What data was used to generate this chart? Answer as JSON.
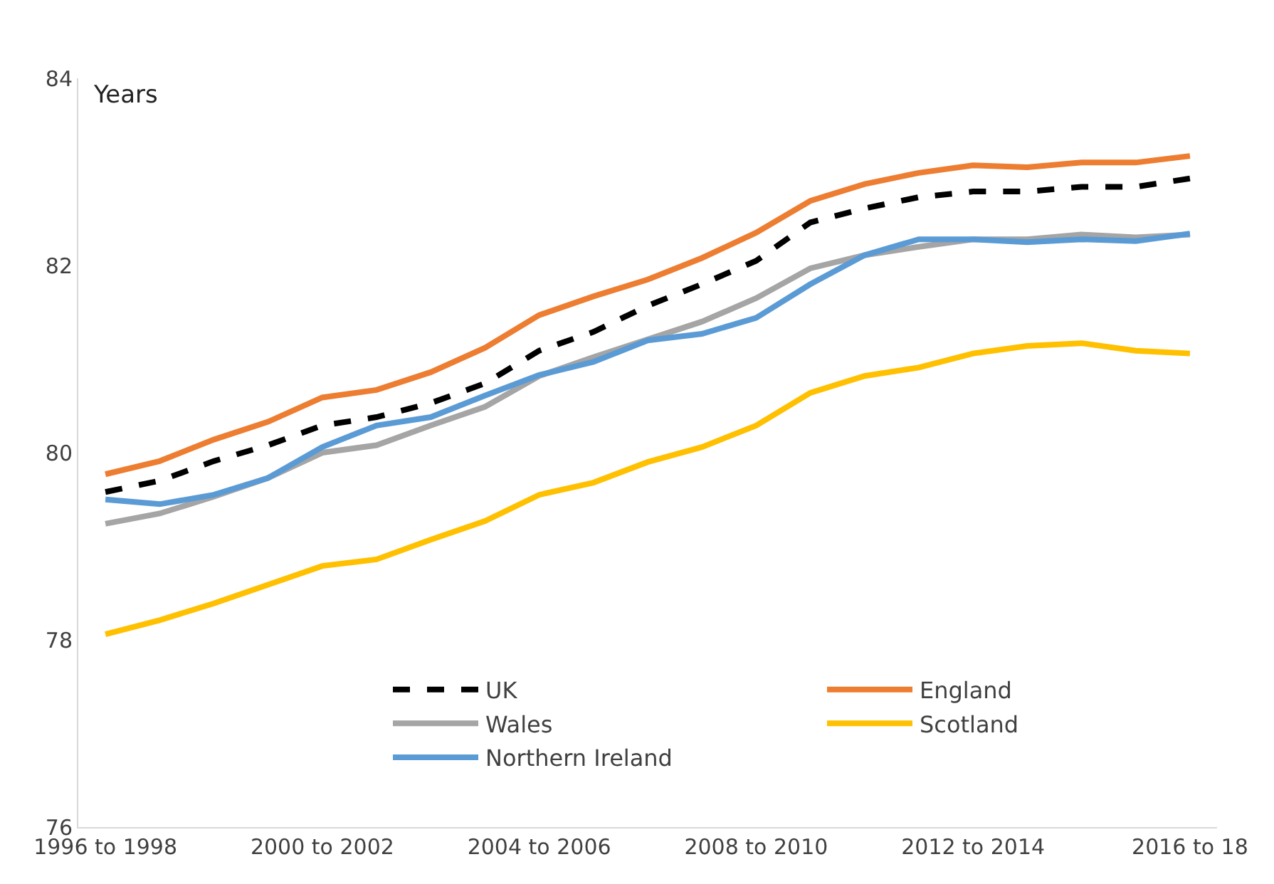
{
  "chart_data": {
    "type": "line",
    "ylabel": "Years",
    "categories": [
      "1996 to 1998",
      null,
      null,
      null,
      "2000 to 2002",
      null,
      null,
      null,
      "2004 to 2006",
      null,
      null,
      null,
      "2008 to 2010",
      null,
      null,
      null,
      "2012 to 2014",
      null,
      null,
      null,
      "2016 to 18"
    ],
    "ylim": [
      76,
      84
    ],
    "yticks": [
      76,
      78,
      80,
      82,
      84
    ],
    "legend": "bottom",
    "series": [
      {
        "name": "UK",
        "color": "#000000",
        "line_style": "dashed",
        "values": [
          79.58,
          79.7,
          79.91,
          80.08,
          80.29,
          80.38,
          80.53,
          80.74,
          81.09,
          81.29,
          81.57,
          81.8,
          82.05,
          82.46,
          82.61,
          82.73,
          82.79,
          82.79,
          82.84,
          82.84,
          82.93
        ]
      },
      {
        "name": "England",
        "color": "#ed7d31",
        "values": [
          79.77,
          79.91,
          80.14,
          80.33,
          80.59,
          80.67,
          80.86,
          81.12,
          81.47,
          81.67,
          81.85,
          82.08,
          82.35,
          82.69,
          82.87,
          82.99,
          83.07,
          83.05,
          83.1,
          83.1,
          83.17
        ]
      },
      {
        "name": "Wales",
        "color": "#a5a5a5",
        "values": [
          79.24,
          79.35,
          79.53,
          79.73,
          80.0,
          80.08,
          80.29,
          80.49,
          80.82,
          81.02,
          81.21,
          81.4,
          81.65,
          81.97,
          82.11,
          82.2,
          82.28,
          82.28,
          82.33,
          82.3,
          82.33
        ]
      },
      {
        "name": "Scotland",
        "color": "#ffc000",
        "values": [
          78.06,
          78.21,
          78.39,
          78.59,
          78.79,
          78.86,
          79.07,
          79.27,
          79.55,
          79.68,
          79.9,
          80.06,
          80.29,
          80.64,
          80.82,
          80.91,
          81.06,
          81.14,
          81.17,
          81.09,
          81.06
        ]
      },
      {
        "name": "Northern Ireland",
        "color": "#5b9bd5",
        "values": [
          79.5,
          79.45,
          79.55,
          79.73,
          80.06,
          80.29,
          80.38,
          80.61,
          80.83,
          80.97,
          81.2,
          81.27,
          81.44,
          81.8,
          82.11,
          82.28,
          82.28,
          82.25,
          82.28,
          82.26,
          82.34
        ]
      }
    ]
  }
}
